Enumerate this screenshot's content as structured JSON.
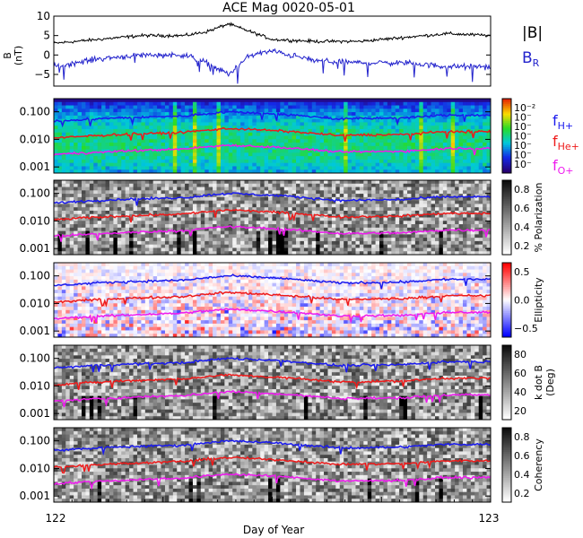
{
  "chart_data": {
    "type": "line",
    "title": "ACE Mag 0020-05-01",
    "xlabel": "Day of Year",
    "xlim": [
      122,
      123
    ],
    "x_ticks": [
      "122",
      "123"
    ],
    "panels": [
      {
        "kind": "line",
        "ylabel": "B",
        "ylabel_unit": "(nT)",
        "ylim": [
          -8,
          10
        ],
        "yticks": [
          "10",
          "5",
          "0",
          "−5"
        ],
        "series": [
          {
            "name": "|B|",
            "color": "#000000",
            "x": [
              122.0,
              122.1,
              122.2,
              122.3,
              122.35,
              122.4,
              122.45,
              122.5,
              122.6,
              122.7,
              122.8,
              122.9,
              123.0
            ],
            "y": [
              3,
              4,
              5,
              5,
              6,
              8,
              6,
              4,
              3.5,
              3.5,
              4.5,
              5.5,
              5
            ]
          },
          {
            "name": "B",
            "name_subscript": "R",
            "color": "#2222cc",
            "x": [
              122.0,
              122.1,
              122.2,
              122.3,
              122.35,
              122.4,
              122.45,
              122.5,
              122.6,
              122.7,
              122.8,
              122.9,
              123.0
            ],
            "y": [
              -3,
              -1,
              0,
              0,
              -2,
              -5,
              0,
              1,
              -1.5,
              -2,
              -2,
              -3,
              -3
            ]
          }
        ]
      },
      {
        "kind": "spectrogram",
        "style": "rainbow",
        "ylim": [
          0.0006,
          0.3
        ],
        "yscale": "log",
        "yticks": [
          "0.100",
          "0.010",
          "0.001"
        ],
        "colorbar": {
          "ticks": [
            "10⁻²",
            "10⁻",
            "10⁻",
            "10⁻",
            "10⁻",
            "10⁻",
            "10⁻"
          ]
        }
      },
      {
        "kind": "spectrogram",
        "style": "grayscale",
        "ylim": [
          0.0006,
          0.3
        ],
        "yscale": "log",
        "yticks": [
          "0.100",
          "0.010",
          "0.001"
        ],
        "colorbar": {
          "ticks": [
            "0.8",
            "0.6",
            "0.4",
            "0.2"
          ],
          "label": "% Polarization"
        }
      },
      {
        "kind": "spectrogram",
        "style": "diverging",
        "ylim": [
          0.0006,
          0.3
        ],
        "yscale": "log",
        "yticks": [
          "0.100",
          "0.010",
          "0.001"
        ],
        "colorbar": {
          "ticks": [
            "0.5",
            "0.0",
            "−0.5"
          ],
          "label": "Ellipticity"
        }
      },
      {
        "kind": "spectrogram",
        "style": "grayscale",
        "ylim": [
          0.0006,
          0.3
        ],
        "yscale": "log",
        "yticks": [
          "0.100",
          "0.010",
          "0.001"
        ],
        "colorbar": {
          "ticks": [
            "80",
            "60",
            "40",
            "20"
          ],
          "label": "k dot B",
          "label2": "(Deg)"
        }
      },
      {
        "kind": "spectrogram",
        "style": "grayscale",
        "ylim": [
          0.0006,
          0.3
        ],
        "yscale": "log",
        "yticks": [
          "0.100",
          "0.010",
          "0.001"
        ],
        "colorbar": {
          "ticks": [
            "0.8",
            "0.6",
            "0.4",
            "0.2"
          ],
          "label": "Coherency"
        }
      }
    ],
    "gyrofrequency_lines": [
      {
        "name": "f",
        "subscript": "H+",
        "color": "#1a1aee",
        "x": [
          122.0,
          122.15,
          122.3,
          122.4,
          122.5,
          122.65,
          122.8,
          122.9,
          123.0
        ],
        "y": [
          0.045,
          0.06,
          0.07,
          0.1,
          0.085,
          0.055,
          0.06,
          0.075,
          0.075
        ]
      },
      {
        "name": "f",
        "subscript": "He+",
        "color": "#ee1a1a",
        "x": [
          122.0,
          122.15,
          122.3,
          122.4,
          122.5,
          122.65,
          122.8,
          122.9,
          123.0
        ],
        "y": [
          0.011,
          0.015,
          0.018,
          0.025,
          0.021,
          0.014,
          0.015,
          0.019,
          0.019
        ]
      },
      {
        "name": "f",
        "subscript": "O+",
        "color": "#ee1aee",
        "x": [
          122.0,
          122.15,
          122.3,
          122.4,
          122.5,
          122.65,
          122.8,
          122.9,
          123.0
        ],
        "y": [
          0.0028,
          0.0037,
          0.0045,
          0.0062,
          0.0053,
          0.0035,
          0.0037,
          0.0047,
          0.0047
        ]
      }
    ]
  }
}
